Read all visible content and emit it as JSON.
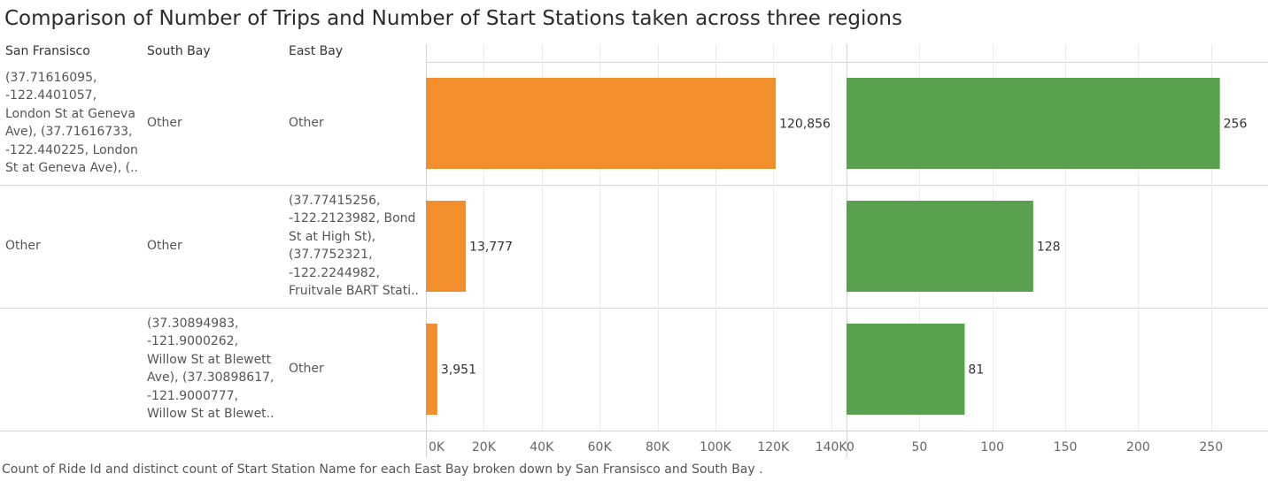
{
  "title": "Comparison of Number of Trips and Number of  Start Stations  taken across three regions",
  "caption": "Count of Ride Id and distinct count of Start Station Name for each East Bay  broken down by San Fransisco  and South Bay .",
  "columns": {
    "san_francisco": "San Fransisco",
    "south_bay": "South Bay",
    "east_bay": "East Bay"
  },
  "rows": [
    {
      "san_francisco": "(37.71616095,\n-122.4401057,\nLondon St at Geneva\nAve), (37.71616733,\n-122.440225, London\nSt at Geneva Ave), (..",
      "south_bay": "Other",
      "east_bay": "Other"
    },
    {
      "san_francisco": "Other",
      "south_bay": "Other",
      "east_bay": "(37.77415256,\n-122.2123982, Bond\nSt at High St),\n(37.7752321,\n-122.2244982,\nFruitvale BART Stati.."
    },
    {
      "san_francisco": "",
      "south_bay": "(37.30894983,\n-121.9000262,\nWillow St at Blewett\nAve), (37.30898617,\n-121.9000777,\nWillow St at Blewet..",
      "east_bay": "Other"
    }
  ],
  "colors": {
    "trips": "#f28e2b",
    "stations": "#59a14f",
    "grid": "#ececec",
    "divider": "#d4d4d4"
  },
  "chart_data": [
    {
      "type": "bar",
      "orientation": "horizontal",
      "measure": "Count of Ride Id",
      "values": [
        120856,
        13777,
        3951
      ],
      "value_labels": [
        "120,856",
        "13,777",
        "3,951"
      ],
      "xlim": [
        0,
        145000
      ],
      "ticks": [
        0,
        20000,
        40000,
        60000,
        80000,
        100000,
        120000,
        140000
      ],
      "tick_labels": [
        "0K",
        "20K",
        "40K",
        "60K",
        "80K",
        "100K",
        "120K",
        "140K"
      ],
      "color": "#f28e2b"
    },
    {
      "type": "bar",
      "orientation": "horizontal",
      "measure": "distinct count of Start Station Name",
      "values": [
        256,
        128,
        81
      ],
      "value_labels": [
        "256",
        "128",
        "81"
      ],
      "xlim": [
        0,
        289
      ],
      "ticks": [
        0,
        50,
        100,
        150,
        200,
        250
      ],
      "tick_labels": [
        "0",
        "50",
        "100",
        "150",
        "200",
        "250"
      ],
      "color": "#59a14f"
    }
  ]
}
